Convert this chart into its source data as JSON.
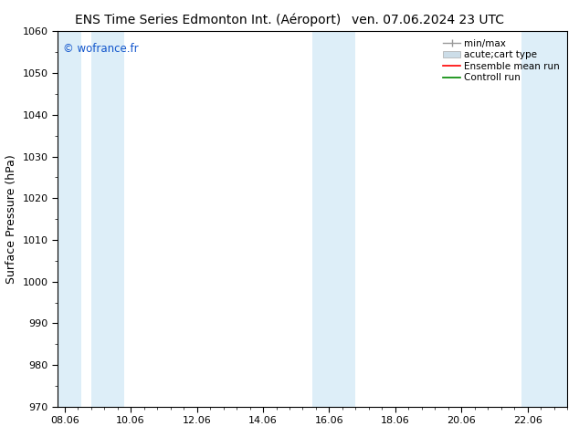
{
  "title_left": "ENS Time Series Edmonton Int. (Aéroport)",
  "title_right": "ven. 07.06.2024 23 UTC",
  "ylabel": "Surface Pressure (hPa)",
  "xlabel_ticks": [
    "08.06",
    "10.06",
    "12.06",
    "14.06",
    "16.06",
    "18.06",
    "20.06",
    "22.06"
  ],
  "xtick_positions": [
    0,
    2,
    4,
    6,
    8,
    10,
    12,
    14
  ],
  "xlim": [
    -0.2,
    15.2
  ],
  "ylim": [
    970,
    1060
  ],
  "yticks": [
    970,
    980,
    990,
    1000,
    1010,
    1020,
    1030,
    1040,
    1050,
    1060
  ],
  "bg_color": "#ffffff",
  "plot_bg_color": "#ffffff",
  "watermark": "© wofrance.fr",
  "watermark_color": "#1155cc",
  "shaded_bands": [
    {
      "x_start": -0.2,
      "x_end": 0.5,
      "color": "#ddeef8"
    },
    {
      "x_start": 0.8,
      "x_end": 1.8,
      "color": "#ddeef8"
    },
    {
      "x_start": 7.5,
      "x_end": 8.8,
      "color": "#ddeef8"
    },
    {
      "x_start": 13.8,
      "x_end": 15.2,
      "color": "#ddeef8"
    }
  ],
  "legend_items": [
    {
      "label": "min/max",
      "color": "#aaaaaa",
      "type": "errorbar"
    },
    {
      "label": "acute;cart type",
      "color": "#ccdde8",
      "type": "bar"
    },
    {
      "label": "Ensemble mean run",
      "color": "#ff0000",
      "type": "line"
    },
    {
      "label": "Controll run",
      "color": "#008800",
      "type": "line"
    }
  ],
  "title_fontsize": 10,
  "axis_label_fontsize": 9,
  "tick_fontsize": 8,
  "legend_fontsize": 7.5,
  "spine_color": "#000000",
  "tick_color": "#000000"
}
